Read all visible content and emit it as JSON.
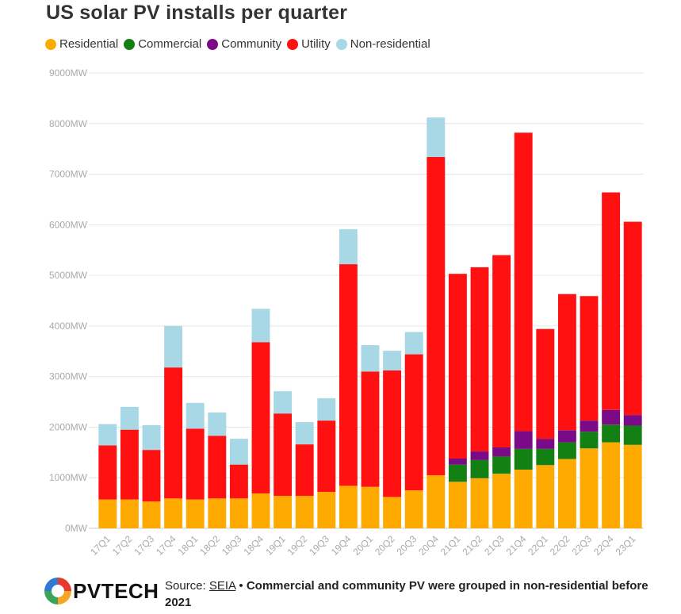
{
  "title": "US solar PV installs per quarter",
  "legend": [
    {
      "label": "Residential",
      "color": "#ffaa00"
    },
    {
      "label": "Commercial",
      "color": "#138014"
    },
    {
      "label": "Community",
      "color": "#7b0a87"
    },
    {
      "label": "Utility",
      "color": "#ff1111"
    },
    {
      "label": "Non-residential",
      "color": "#a8d8e6"
    }
  ],
  "footer": {
    "logo_text": "PVTECH",
    "source_prefix": "Source:",
    "source_link": "SEIA",
    "separator": "•",
    "note": "Commercial and community PV were grouped in non-residential before 2021"
  },
  "chart_data": {
    "type": "bar",
    "stacked": true,
    "title": "US solar PV installs per quarter",
    "xlabel": "",
    "ylabel": "",
    "ylim": [
      0,
      9000
    ],
    "y_ticks": [
      "0MW",
      "1000MW",
      "2000MW",
      "3000MW",
      "4000MW",
      "5000MW",
      "6000MW",
      "7000MW",
      "8000MW",
      "9000MW"
    ],
    "grid": true,
    "legend_position": "top-left",
    "categories": [
      "17Q1",
      "17Q2",
      "17Q3",
      "17Q4",
      "18Q1",
      "18Q2",
      "18Q3",
      "18Q4",
      "19Q1",
      "19Q2",
      "19Q3",
      "19Q4",
      "20Q1",
      "20Q2",
      "20Q3",
      "20Q4",
      "21Q1",
      "21Q2",
      "21Q3",
      "21Q4",
      "22Q1",
      "22Q2",
      "22Q3",
      "22Q4",
      "23Q1"
    ],
    "series": [
      {
        "name": "Residential",
        "color": "#ffaa00",
        "values": [
          570,
          570,
          530,
          590,
          570,
          590,
          590,
          690,
          640,
          640,
          720,
          840,
          820,
          620,
          750,
          1050,
          920,
          990,
          1080,
          1160,
          1250,
          1370,
          1580,
          1700,
          1650
        ]
      },
      {
        "name": "Commercial",
        "color": "#138014",
        "values": [
          0,
          0,
          0,
          0,
          0,
          0,
          0,
          0,
          0,
          0,
          0,
          0,
          0,
          0,
          0,
          0,
          340,
          360,
          340,
          410,
          320,
          330,
          330,
          350,
          380
        ]
      },
      {
        "name": "Community",
        "color": "#7b0a87",
        "values": [
          0,
          0,
          0,
          0,
          0,
          0,
          0,
          0,
          0,
          0,
          0,
          0,
          0,
          0,
          0,
          0,
          120,
          170,
          180,
          350,
          200,
          240,
          220,
          290,
          210
        ]
      },
      {
        "name": "Utility",
        "color": "#ff1111",
        "values": [
          1070,
          1380,
          1020,
          2590,
          1400,
          1240,
          670,
          2990,
          1630,
          1020,
          1410,
          4380,
          2280,
          2500,
          2690,
          6290,
          3650,
          3640,
          3800,
          5900,
          2170,
          2690,
          2460,
          4300,
          3820
        ]
      },
      {
        "name": "Non-residential",
        "color": "#a8d8e6",
        "values": [
          420,
          450,
          490,
          820,
          510,
          460,
          510,
          660,
          440,
          440,
          440,
          690,
          520,
          390,
          440,
          780,
          0,
          0,
          0,
          0,
          0,
          0,
          0,
          0,
          0
        ]
      }
    ]
  }
}
